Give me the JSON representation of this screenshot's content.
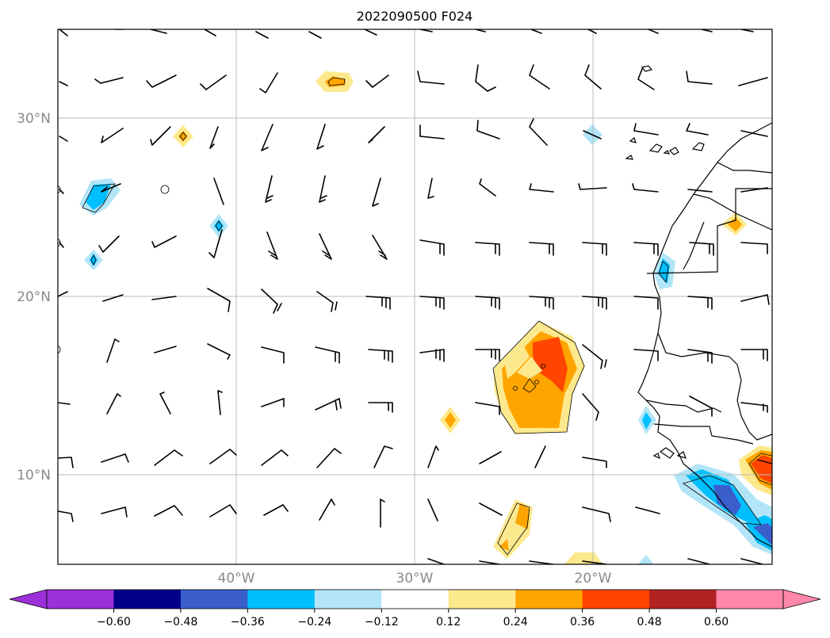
{
  "title": "2022090500 F024",
  "lat_labels": [
    "30°N",
    "20°N",
    "10°N"
  ],
  "lon_labels": [
    "40°W",
    "30°W",
    "20°W"
  ],
  "colorbar": {
    "ticks": [
      "−0.60",
      "−0.48",
      "−0.36",
      "−0.24",
      "−0.12",
      "0.12",
      "0.24",
      "0.36",
      "0.48",
      "0.60"
    ],
    "colors": [
      "#9b30d9",
      "#00008b",
      "#3a5fcd",
      "#00bfff",
      "#b2e5f7",
      "#ffffff",
      "#fde98d",
      "#ffa500",
      "#ff4500",
      "#b22222",
      "#ff88aa"
    ]
  }
}
